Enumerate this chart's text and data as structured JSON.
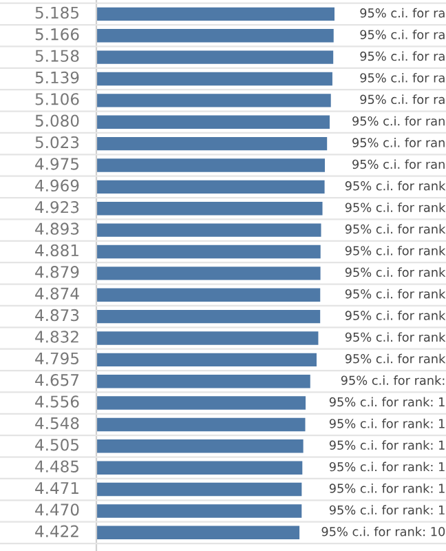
{
  "chart_data": {
    "type": "bar",
    "orientation": "horizontal",
    "categories": [
      null,
      null,
      null,
      null,
      null,
      null,
      null,
      null,
      null,
      null,
      null,
      null,
      null,
      null,
      null,
      null,
      null,
      null,
      null,
      null,
      null,
      null,
      null,
      null,
      null
    ],
    "series": [
      {
        "color": "#4e79a7",
        "values": [
          5.185,
          5.166,
          5.158,
          5.139,
          5.106,
          5.08,
          5.023,
          4.975,
          4.969,
          4.923,
          4.893,
          4.881,
          4.879,
          4.874,
          4.873,
          4.832,
          4.795,
          4.657,
          4.556,
          4.548,
          4.505,
          4.485,
          4.471,
          4.47,
          4.422
        ],
        "value_labels": [
          "5.185",
          "5.166",
          "5.158",
          "5.139",
          "5.106",
          "5.080",
          "5.023",
          "4.975",
          "4.969",
          "4.923",
          "4.893",
          "4.881",
          "4.879",
          "4.874",
          "4.873",
          "4.832",
          "4.795",
          "4.657",
          "4.556",
          "4.548",
          "4.505",
          "4.485",
          "4.471",
          "4.470",
          "4.422"
        ]
      }
    ],
    "annotations": [
      "95% c.i. for ra",
      "95% c.i. for ra",
      "95% c.i. for ra",
      "95% c.i. for ra",
      "95% c.i. for ra",
      "95% c.i. for ran",
      "95% c.i. for ran",
      "95% c.i. for ran",
      "95% c.i. for rank",
      "95% c.i. for rank",
      "95% c.i. for rank",
      "95% c.i. for rank",
      "95% c.i. for rank",
      "95% c.i. for rank",
      "95% c.i. for rank",
      "95% c.i. for rank",
      "95% c.i. for rank",
      "95% c.i. for rank:",
      "95% c.i. for rank: 1",
      "95% c.i. for rank: 1",
      "95% c.i. for rank: 1",
      "95% c.i. for rank: 1",
      "95% c.i. for rank: 1",
      "95% c.i. for rank: 1",
      "95% c.i. for rank: 10"
    ],
    "grid": "y",
    "legend": false
  }
}
